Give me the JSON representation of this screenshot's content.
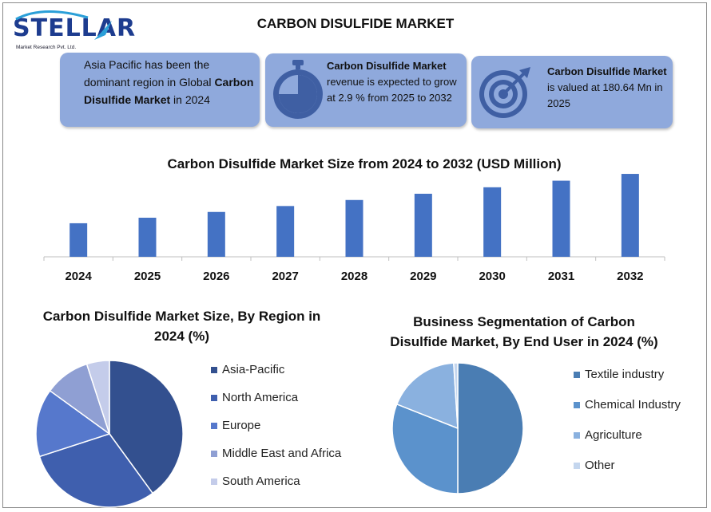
{
  "logo": {
    "word": "STELLAR",
    "subtitle": "Market Research Pvt. Ltd."
  },
  "title": "CARBON DISULFIDE MARKET",
  "cards": [
    {
      "pre": "Asia Pacific has been the dominant region in Global ",
      "bold": "Carbon Disulfide Market",
      "post": " in 2024",
      "icon": ""
    },
    {
      "bold": "Carbon Disulfide Market",
      "post": " revenue is expected to grow at 2.9 % from 2025 to 2032",
      "icon": "stopwatch-icon"
    },
    {
      "bold": "Carbon Disulfide Market",
      "post": " is valued at 180.64 Mn in 2025",
      "icon": "target-icon"
    }
  ],
  "colors": {
    "card": "#8fa9dc",
    "bar": "#4472c4",
    "icon": "#3f5fa3"
  },
  "chart_data": [
    {
      "type": "bar",
      "title": "Carbon Disulfide Market Size from 2024 to 2032 (USD Million)",
      "categories": [
        "2024",
        "2025",
        "2026",
        "2027",
        "2028",
        "2029",
        "2030",
        "2031",
        "2032"
      ],
      "values": [
        175.6,
        180.64,
        185.9,
        191.3,
        196.8,
        202.5,
        208.4,
        214.4,
        220.6
      ],
      "ylim": [
        145,
        225
      ],
      "grid": false,
      "color": "#4472c4"
    },
    {
      "type": "pie",
      "title": "Carbon Disulfide Market Size, By Region in 2024 (%)",
      "labels": [
        "Asia-Pacific",
        "North America",
        "Europe",
        "Middle East and Africa",
        "South America"
      ],
      "values": [
        40,
        30,
        15,
        10,
        5
      ],
      "colors": [
        "#33508f",
        "#3f5fae",
        "#5678cc",
        "#8f9fd3",
        "#c4ccea"
      ],
      "legend": "right"
    },
    {
      "type": "pie",
      "title": "Business Segmentation of Carbon Disulfide Market, By End User in 2024 (%)",
      "labels": [
        "Textile industry",
        "Chemical Industry",
        "Agriculture",
        "Other"
      ],
      "values": [
        50,
        31,
        18,
        1
      ],
      "colors": [
        "#4a7db3",
        "#5b92cc",
        "#8ab1df",
        "#c4d6ee"
      ],
      "legend": "right"
    }
  ]
}
